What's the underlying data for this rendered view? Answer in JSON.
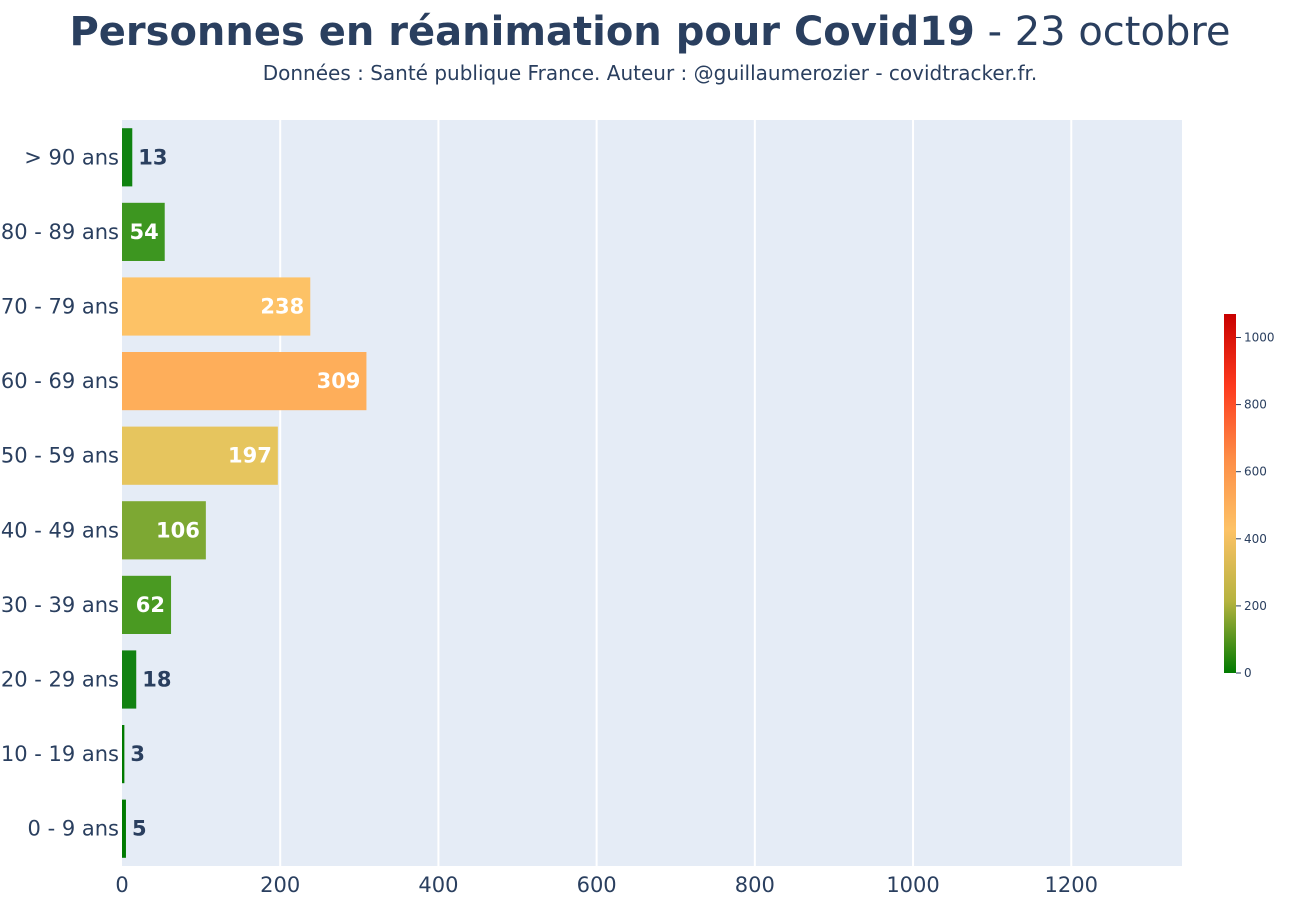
{
  "title": {
    "main": "Personnes en réanimation pour Covid19",
    "date": " - 23 octobre"
  },
  "subtitle": "Données : Santé publique France. Auteur : @guillaumerozier - covidtracker.fr.",
  "colors": {
    "plot_bg": "#e5ecf6",
    "grid": "#ffffff",
    "text": "#2a3f5f",
    "inside_label": "#ffffff",
    "outside_label": "#2a3f5f"
  },
  "chart_data": {
    "type": "bar",
    "orientation": "horizontal",
    "categories": [
      "0 - 9 ans",
      "10 - 19 ans",
      "20 - 29 ans",
      "30 - 39 ans",
      "40 - 49 ans",
      "50 - 59 ans",
      "60 - 69 ans",
      "70 - 79 ans",
      "80 - 89 ans",
      "> 90 ans"
    ],
    "values": [
      5,
      3,
      18,
      62,
      106,
      197,
      309,
      238,
      54,
      13
    ],
    "bar_colors": [
      "#007a00",
      "#007a00",
      "#118211",
      "#4a9a22",
      "#7da833",
      "#e6c55e",
      "#feae5a",
      "#fdc266",
      "#3d9620",
      "#0f8210"
    ],
    "title": "Personnes en réanimation pour Covid19 - 23 octobre",
    "xlabel": "",
    "ylabel": "",
    "xlim": [
      0,
      1340
    ],
    "xticks": [
      "0",
      "200",
      "400",
      "600",
      "800",
      "1000",
      "1200"
    ],
    "xtick_values": [
      0,
      200,
      400,
      600,
      800,
      1000,
      1200
    ],
    "grid": true,
    "colorbar": {
      "min": 0,
      "max": 1070,
      "ticks": [
        "0",
        "200",
        "400",
        "600",
        "800",
        "1000"
      ],
      "tick_values": [
        0,
        200,
        400,
        600,
        800,
        1000
      ],
      "colors": [
        "#007a00",
        "#b5b33f",
        "#fdc266",
        "#fd8c46",
        "#fd3a1e",
        "#c80000"
      ]
    }
  }
}
